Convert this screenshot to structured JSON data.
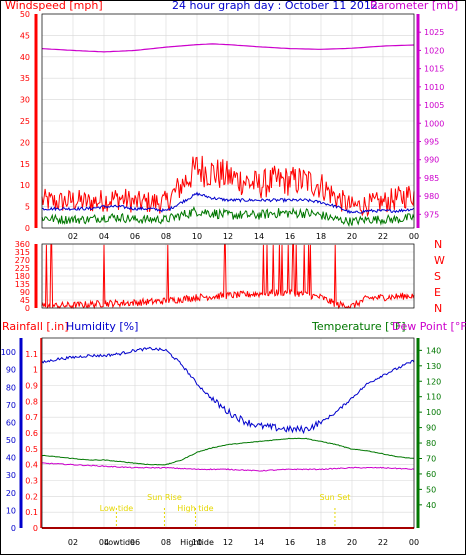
{
  "title": "24 hour graph day : October 11 2012",
  "chart_data": [
    {
      "type": "line",
      "panel": "wind_barometer",
      "left_label": "Windspeed [mph]",
      "right_label": "Barometer [mb]",
      "left_ylim": [
        0,
        50
      ],
      "left_ticks": [
        "0",
        "5",
        "10",
        "15",
        "20",
        "25",
        "30",
        "35",
        "40",
        "45",
        "50"
      ],
      "right_ylim": [
        971.25,
        1030
      ],
      "right_ticks": [
        "975",
        "980",
        "985",
        "990",
        "995",
        "1000",
        "1005",
        "1010",
        "1015",
        "1020",
        "1025"
      ],
      "xlim": [
        0,
        24
      ],
      "x_ticks": [
        "02",
        "04",
        "06",
        "08",
        "10",
        "12",
        "14",
        "16",
        "18",
        "20",
        "22",
        "00"
      ],
      "grid": true,
      "series": [
        {
          "key": "gust",
          "color": "#ff0000",
          "values": [
            [
              0,
              6.5
            ],
            [
              1,
              6
            ],
            [
              2,
              6.5
            ],
            [
              3,
              6
            ],
            [
              4,
              6.5
            ],
            [
              5,
              7
            ],
            [
              6,
              6
            ],
            [
              7,
              6
            ],
            [
              8,
              6
            ],
            [
              9,
              10
            ],
            [
              10,
              14
            ],
            [
              11,
              13
            ],
            [
              12,
              12
            ],
            [
              13,
              11
            ],
            [
              14,
              10
            ],
            [
              15,
              11
            ],
            [
              16,
              11
            ],
            [
              17,
              11
            ],
            [
              18,
              10
            ],
            [
              19,
              7
            ],
            [
              20,
              5
            ],
            [
              21,
              5.5
            ],
            [
              22,
              6
            ],
            [
              23,
              7
            ],
            [
              24,
              8
            ]
          ]
        },
        {
          "key": "average",
          "color": "#0000cc",
          "values": [
            [
              0,
              4.5
            ],
            [
              1,
              4.5
            ],
            [
              2,
              4.5
            ],
            [
              3,
              4.5
            ],
            [
              4,
              5
            ],
            [
              5,
              5
            ],
            [
              6,
              4.5
            ],
            [
              7,
              4.5
            ],
            [
              8,
              4
            ],
            [
              9,
              6
            ],
            [
              10,
              8
            ],
            [
              11,
              7
            ],
            [
              12,
              6.5
            ],
            [
              13,
              6.5
            ],
            [
              14,
              6.5
            ],
            [
              15,
              6.5
            ],
            [
              16,
              6.5
            ],
            [
              17,
              6.5
            ],
            [
              18,
              6
            ],
            [
              19,
              5
            ],
            [
              20,
              3.5
            ],
            [
              21,
              4
            ],
            [
              22,
              4
            ],
            [
              23,
              4
            ],
            [
              24,
              4.5
            ]
          ]
        },
        {
          "key": "windspeed",
          "color": "#007700",
          "values": [
            [
              0,
              2.5
            ],
            [
              1,
              2
            ],
            [
              2,
              2
            ],
            [
              3,
              2
            ],
            [
              4,
              2.5
            ],
            [
              5,
              2.5
            ],
            [
              6,
              2
            ],
            [
              7,
              2
            ],
            [
              8,
              2
            ],
            [
              9,
              3
            ],
            [
              10,
              4
            ],
            [
              11,
              3.5
            ],
            [
              12,
              3
            ],
            [
              13,
              3
            ],
            [
              14,
              3
            ],
            [
              15,
              3.5
            ],
            [
              16,
              3.5
            ],
            [
              17,
              3.5
            ],
            [
              18,
              3
            ],
            [
              19,
              2
            ],
            [
              20,
              1.5
            ],
            [
              21,
              2
            ],
            [
              22,
              2
            ],
            [
              23,
              2
            ],
            [
              24,
              2.5
            ]
          ]
        },
        {
          "key": "barometer",
          "color": "#cc00cc",
          "axis": "right",
          "values": [
            [
              0,
              1020.5
            ],
            [
              2,
              1020
            ],
            [
              4,
              1019.6
            ],
            [
              6,
              1020
            ],
            [
              8,
              1020.9
            ],
            [
              10,
              1021.6
            ],
            [
              11,
              1021.8
            ],
            [
              12,
              1021.6
            ],
            [
              14,
              1021
            ],
            [
              16,
              1020.5
            ],
            [
              18,
              1020.3
            ],
            [
              20,
              1020.6
            ],
            [
              22,
              1021.2
            ],
            [
              24,
              1021.5
            ]
          ]
        }
      ]
    },
    {
      "type": "line",
      "panel": "wind_direction",
      "left_ylim": [
        0,
        360
      ],
      "left_ticks": [
        "0",
        "45",
        "90",
        "135",
        "180",
        "225",
        "270",
        "315",
        "360"
      ],
      "right_labels": [
        "N",
        "W",
        "S",
        "E",
        "N"
      ],
      "xlim": [
        0,
        24
      ],
      "grid": true,
      "series": [
        {
          "key": "direction",
          "color": "#ff0000",
          "values": [
            [
              0,
              10
            ],
            [
              2,
              15
            ],
            [
              4,
              25
            ],
            [
              6,
              30
            ],
            [
              8,
              40
            ],
            [
              10,
              60
            ],
            [
              12,
              70
            ],
            [
              14,
              80
            ],
            [
              16,
              90
            ],
            [
              18,
              60
            ],
            [
              19,
              20
            ],
            [
              20,
              10
            ],
            [
              21,
              55
            ],
            [
              22,
              60
            ],
            [
              23,
              65
            ],
            [
              24,
              70
            ]
          ]
        }
      ]
    },
    {
      "type": "line",
      "panel": "rain_humidity_temperature",
      "left_label_rain": "Rainfall [.in]",
      "left_label_humidity": "Humidity [%]",
      "right_label_temp": "Temperature [°F]",
      "right_label_dew": "Dew Point [°F]",
      "rain_ylim": [
        0,
        1.2
      ],
      "rain_ticks": [
        "0",
        "0.1",
        "0.2",
        "0.3",
        "0.4",
        "0.5",
        "0.6",
        "0.7",
        "0.8",
        "0.9",
        "1",
        "1.1"
      ],
      "humidity_ylim": [
        0,
        108
      ],
      "humidity_ticks": [
        "0",
        "10",
        "20",
        "30",
        "40",
        "50",
        "60",
        "70",
        "80",
        "90",
        "100"
      ],
      "temp_ylim": [
        25,
        148
      ],
      "temp_ticks": [
        "40",
        "50",
        "60",
        "70",
        "80",
        "90",
        "100",
        "110",
        "120",
        "130",
        "140"
      ],
      "xlim": [
        0,
        24
      ],
      "x_ticks": [
        "02",
        "04",
        "06",
        "08",
        "10",
        "12",
        "14",
        "16",
        "18",
        "20",
        "22",
        "00"
      ],
      "grid": true,
      "series": [
        {
          "key": "humidity",
          "color": "#0000cc",
          "axis": "humidity",
          "values": [
            [
              0,
              94
            ],
            [
              1,
              96
            ],
            [
              2,
              97
            ],
            [
              3,
              98
            ],
            [
              4,
              98
            ],
            [
              5,
              99
            ],
            [
              6,
              101
            ],
            [
              7,
              102
            ],
            [
              8,
              101
            ],
            [
              9,
              93
            ],
            [
              10,
              82
            ],
            [
              11,
              73
            ],
            [
              12,
              66
            ],
            [
              13,
              61
            ],
            [
              14,
              58
            ],
            [
              15,
              57
            ],
            [
              16,
              56
            ],
            [
              17,
              56
            ],
            [
              18,
              60
            ],
            [
              19,
              66
            ],
            [
              20,
              74
            ],
            [
              21,
              82
            ],
            [
              22,
              87
            ],
            [
              23,
              91
            ],
            [
              24,
              95
            ]
          ]
        },
        {
          "key": "temperature",
          "color": "#007700",
          "axis": "temp",
          "values": [
            [
              0,
              72
            ],
            [
              1,
              71
            ],
            [
              2,
              70
            ],
            [
              3,
              69
            ],
            [
              4,
              69
            ],
            [
              5,
              68
            ],
            [
              6,
              67
            ],
            [
              7,
              66
            ],
            [
              8,
              66
            ],
            [
              9,
              69
            ],
            [
              10,
              74
            ],
            [
              11,
              77
            ],
            [
              12,
              79
            ],
            [
              13,
              80
            ],
            [
              14,
              81
            ],
            [
              15,
              82
            ],
            [
              16,
              83
            ],
            [
              17,
              83
            ],
            [
              18,
              81
            ],
            [
              19,
              79
            ],
            [
              20,
              76
            ],
            [
              21,
              75
            ],
            [
              22,
              73
            ],
            [
              23,
              71
            ],
            [
              24,
              70
            ]
          ]
        },
        {
          "key": "dew_point",
          "color": "#cc00cc",
          "axis": "temp",
          "values": [
            [
              0,
              67
            ],
            [
              2,
              66
            ],
            [
              4,
              65
            ],
            [
              6,
              64
            ],
            [
              8,
              64
            ],
            [
              10,
              63
            ],
            [
              12,
              63
            ],
            [
              14,
              62
            ],
            [
              16,
              63
            ],
            [
              18,
              63
            ],
            [
              20,
              64
            ],
            [
              22,
              64
            ],
            [
              24,
              63
            ]
          ]
        },
        {
          "key": "rainfall",
          "color": "#ff0000",
          "axis": "rain",
          "values": [
            [
              0,
              0
            ],
            [
              24,
              0
            ]
          ]
        }
      ],
      "annotations": [
        {
          "text": "Low tide",
          "x": 4.8,
          "color": "#e6d800"
        },
        {
          "text": "Sun Rise",
          "x": 7.9,
          "color": "#e6d800"
        },
        {
          "text": "High tide",
          "x": 9.9,
          "color": "#e6d800"
        },
        {
          "text": "Sun Set",
          "x": 18.9,
          "color": "#e6d800"
        }
      ],
      "bottom_labels": [
        {
          "text": "Lowtide",
          "x": 5.0
        },
        {
          "text": "Hightide",
          "x": 10.0
        }
      ]
    }
  ]
}
